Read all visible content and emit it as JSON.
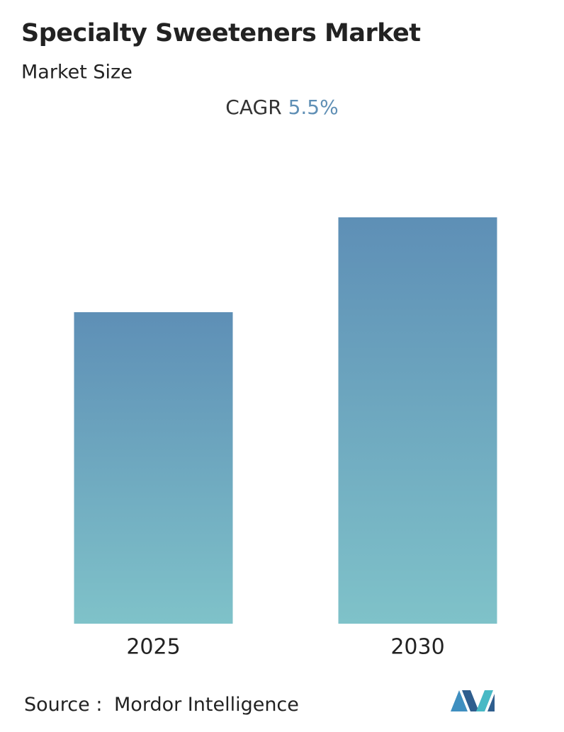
{
  "chart_data": {
    "type": "bar",
    "title": "Specialty Sweeteners Market",
    "subtitle": "Market Size",
    "cagr_label": "CAGR",
    "cagr_value": "5.5%",
    "categories": [
      "2025",
      "2030"
    ],
    "values": [
      440,
      574
    ],
    "color_top": "#5e8fb6",
    "color_bottom": "#7fc2c9",
    "source_label": "Source :",
    "source": "Mordor Intelligence"
  }
}
